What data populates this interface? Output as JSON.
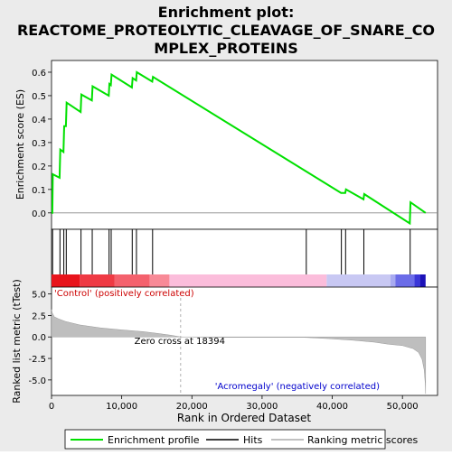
{
  "chart_data": {
    "type": "line",
    "title_lines": [
      "Enrichment plot:",
      "REACTOME_PROTEOLYTIC_CLEAVAGE_OF_SNARE_CO",
      "MPLEX_PROTEINS"
    ],
    "xlabel": "Rank in Ordered Dataset",
    "xlim": [
      0,
      55000
    ],
    "x_ticks": [
      0,
      10000,
      20000,
      30000,
      40000,
      50000
    ],
    "x_tick_labels": [
      "0",
      "10,000",
      "20,000",
      "30,000",
      "40,000",
      "50,000"
    ],
    "es_panel": {
      "ylabel": "Enrichment score (ES)",
      "ylim": [
        -0.07,
        0.65
      ],
      "y_ticks": [
        0.0,
        0.1,
        0.2,
        0.3,
        0.4,
        0.5,
        0.6
      ],
      "y_tick_labels": [
        "0.0",
        "0.1",
        "0.2",
        "0.3",
        "0.4",
        "0.5",
        "0.6"
      ],
      "series_name": "Enrichment profile",
      "points": [
        [
          0,
          0.0
        ],
        [
          120,
          0.0
        ],
        [
          180,
          0.165
        ],
        [
          1150,
          0.15
        ],
        [
          1250,
          0.27
        ],
        [
          1700,
          0.26
        ],
        [
          1800,
          0.37
        ],
        [
          2050,
          0.37
        ],
        [
          2150,
          0.47
        ],
        [
          4150,
          0.43
        ],
        [
          4250,
          0.505
        ],
        [
          5750,
          0.48
        ],
        [
          5850,
          0.54
        ],
        [
          8150,
          0.5
        ],
        [
          8250,
          0.55
        ],
        [
          8450,
          0.545
        ],
        [
          8550,
          0.59
        ],
        [
          11450,
          0.535
        ],
        [
          11550,
          0.575
        ],
        [
          12050,
          0.565
        ],
        [
          12150,
          0.6
        ],
        [
          14350,
          0.56
        ],
        [
          14450,
          0.58
        ],
        [
          41250,
          0.085
        ],
        [
          41850,
          0.085
        ],
        [
          41950,
          0.1
        ],
        [
          44450,
          0.058
        ],
        [
          44550,
          0.08
        ],
        [
          51050,
          -0.045
        ],
        [
          51150,
          0.045
        ],
        [
          53300,
          0.0
        ]
      ]
    },
    "hits": {
      "label": "Hits",
      "positions": [
        150,
        1200,
        1750,
        2100,
        4200,
        5800,
        8200,
        8500,
        11500,
        12100,
        14400,
        36300,
        41300,
        41900,
        44500,
        51100
      ]
    },
    "color_bar": {
      "segments": [
        {
          "from": 0,
          "to": 4000,
          "color": "#e8141c"
        },
        {
          "from": 4000,
          "to": 9000,
          "color": "#ef3a44"
        },
        {
          "from": 9000,
          "to": 14000,
          "color": "#f4616d"
        },
        {
          "from": 14000,
          "to": 16800,
          "color": "#f88a97"
        },
        {
          "from": 16800,
          "to": 39200,
          "color": "#fbbddb"
        },
        {
          "from": 39200,
          "to": 48300,
          "color": "#c8c8f3"
        },
        {
          "from": 48300,
          "to": 49000,
          "color": "#a8aaf0"
        },
        {
          "from": 49000,
          "to": 51700,
          "color": "#6b6ce8"
        },
        {
          "from": 51700,
          "to": 52500,
          "color": "#3a36d8"
        },
        {
          "from": 52500,
          "to": 53300,
          "color": "#1c12b8"
        }
      ]
    },
    "metric_panel": {
      "ylabel": "Ranked list metric (tTest)",
      "ylim": [
        -6.8,
        5.8
      ],
      "y_ticks": [
        -5.0,
        -2.5,
        0.0,
        2.5,
        5.0
      ],
      "y_tick_labels": [
        "-5.0",
        "-2.5",
        "0.0",
        "2.5",
        "5.0"
      ],
      "series_name": "Ranking metric scores",
      "points": [
        [
          0,
          3.2
        ],
        [
          100,
          2.8
        ],
        [
          400,
          2.35
        ],
        [
          1000,
          2.1
        ],
        [
          2000,
          1.8
        ],
        [
          4000,
          1.4
        ],
        [
          7000,
          1.05
        ],
        [
          10000,
          0.82
        ],
        [
          13000,
          0.62
        ],
        [
          15000,
          0.42
        ],
        [
          17000,
          0.2
        ],
        [
          18394,
          0.0
        ],
        [
          25000,
          -0.05
        ],
        [
          36000,
          -0.05
        ],
        [
          39500,
          -0.2
        ],
        [
          43000,
          -0.38
        ],
        [
          46000,
          -0.6
        ],
        [
          48000,
          -0.85
        ],
        [
          50000,
          -1.0
        ],
        [
          51500,
          -1.35
        ],
        [
          52300,
          -1.8
        ],
        [
          52800,
          -2.6
        ],
        [
          53100,
          -3.8
        ],
        [
          53250,
          -5.4
        ],
        [
          53300,
          -6.6
        ]
      ],
      "zero_cross_label": "Zero cross at 18394",
      "zero_cross_x": 18394,
      "positive_label": "'Control' (positively correlated)",
      "negative_label": "'Acromegaly' (negatively correlated)"
    },
    "legend": {
      "placement": "bottom",
      "items": [
        {
          "label": "Enrichment profile",
          "color": "#00e000"
        },
        {
          "label": "Hits",
          "color": "#000000"
        },
        {
          "label": "Ranking metric scores",
          "color": "#c0c0c0"
        }
      ]
    },
    "colors": {
      "background": "#ebebeb",
      "enrichment_line": "#00e000",
      "metric_fill": "#bebebe",
      "positive_label": "#cc0000",
      "negative_label": "#0000cc",
      "zero_cross_line": "#b0b0b0"
    }
  }
}
